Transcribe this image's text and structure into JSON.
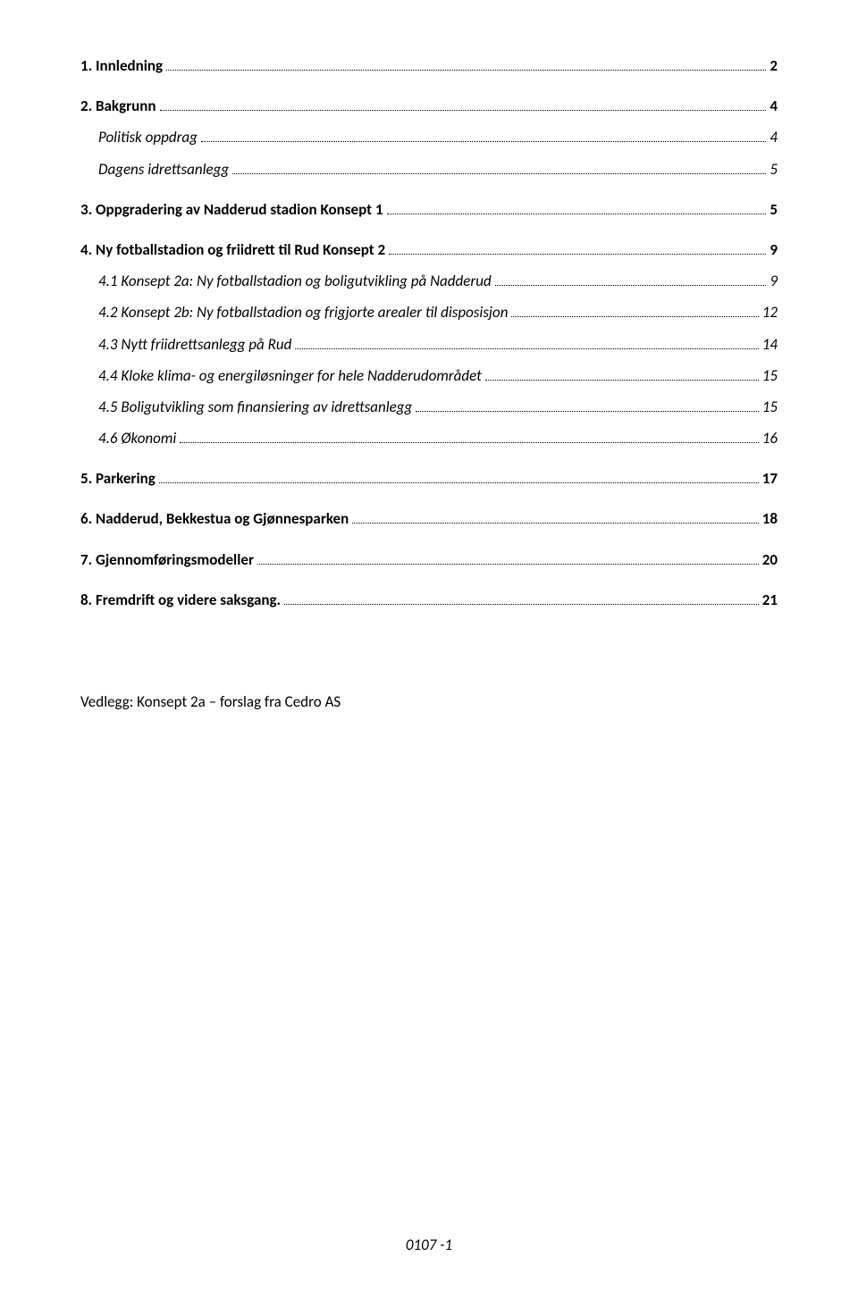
{
  "toc": [
    {
      "level": 1,
      "label": "1. Innledning",
      "page": "2"
    },
    {
      "level": 1,
      "label": "2. Bakgrunn",
      "page": "4"
    },
    {
      "level": 2,
      "label": "Politisk oppdrag",
      "page": "4"
    },
    {
      "level": 2,
      "label": "Dagens idrettsanlegg",
      "page": "5"
    },
    {
      "level": 1,
      "label": "3. Oppgradering av Nadderud stadion Konsept 1",
      "page": "5"
    },
    {
      "level": 1,
      "label": "4. Ny fotballstadion og friidrett til Rud Konsept 2",
      "page": "9"
    },
    {
      "level": 2,
      "label": "4.1 Konsept 2a: Ny fotballstadion og boligutvikling på Nadderud",
      "page": "9"
    },
    {
      "level": 2,
      "label": "4.2  Konsept 2b: Ny fotballstadion og frigjorte arealer til disposisjon",
      "page": "12"
    },
    {
      "level": 2,
      "label": "4.3 Nytt friidrettsanlegg på Rud",
      "page": "14"
    },
    {
      "level": 2,
      "label": "4.4 Kloke klima- og energiløsninger for hele Nadderudområdet",
      "page": "15"
    },
    {
      "level": 2,
      "label": "4.5 Boligutvikling som finansiering av idrettsanlegg",
      "page": "15"
    },
    {
      "level": 2,
      "label": "4.6  Økonomi",
      "page": "16"
    },
    {
      "level": 1,
      "label": "5. Parkering",
      "page": "17"
    },
    {
      "level": 1,
      "label": "6. Nadderud, Bekkestua og Gjønnesparken",
      "page": "18"
    },
    {
      "level": 1,
      "label": "7. Gjennomføringsmodeller",
      "page": "20"
    },
    {
      "level": 1,
      "label": "8. Fremdrift og videre saksgang.",
      "page": "21"
    }
  ],
  "appendix": "Vedlegg: Konsept 2a – forslag fra Cedro AS",
  "footer": "0107 -1"
}
